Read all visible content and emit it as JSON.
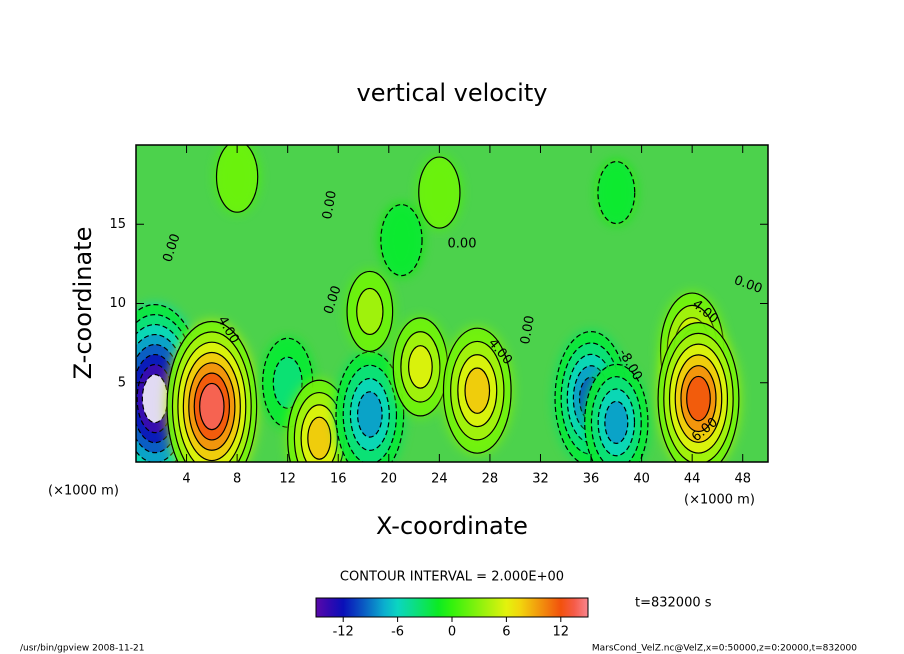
{
  "chart_data": {
    "type": "contour",
    "title": "vertical velocity",
    "x_label": "X-coordinate",
    "y_label": "Z-coordinate",
    "axis_unit": "(×1000 m)",
    "xlim": [
      0,
      50
    ],
    "ylim": [
      0,
      20
    ],
    "xticks": [
      4,
      8,
      12,
      16,
      20,
      24,
      28,
      32,
      36,
      40,
      44,
      48
    ],
    "yticks": [
      5,
      10,
      15
    ],
    "features": [
      {
        "x": 1.5,
        "z": 4,
        "value": -16
      },
      {
        "x": 6,
        "z": 3.5,
        "value": 14
      },
      {
        "x": 12,
        "z": 5,
        "value": -5
      },
      {
        "x": 14.5,
        "z": 1.5,
        "value": 8
      },
      {
        "x": 18.5,
        "z": 3,
        "value": -9
      },
      {
        "x": 18.5,
        "z": 9.5,
        "value": 4
      },
      {
        "x": 22.5,
        "z": 6,
        "value": 6
      },
      {
        "x": 27,
        "z": 4.5,
        "value": 9
      },
      {
        "x": 36,
        "z": 4,
        "value": -10
      },
      {
        "x": 38,
        "z": 2.5,
        "value": -8
      },
      {
        "x": 44,
        "z": 7,
        "value": 8
      },
      {
        "x": 44.5,
        "z": 4,
        "value": 12
      },
      {
        "x": 24,
        "z": 17,
        "value": 3
      },
      {
        "x": 8,
        "z": 18,
        "value": 3
      },
      {
        "x": 38,
        "z": 17,
        "value": -2
      },
      {
        "x": 21,
        "z": 14,
        "value": -3
      }
    ],
    "contour_labels": [
      "0.00",
      "0.00",
      "0.00",
      "0.00",
      "0.00",
      "4.00",
      "4.00",
      "-8.00",
      "4.00",
      "6.00",
      "0.00"
    ],
    "contour_interval": "CONTOUR INTERVAL = 2.000E+00",
    "clim": [
      -15,
      15
    ],
    "colorbar_ticks": [
      -12,
      -6,
      0,
      6,
      12
    ],
    "time_label": "t=832000 s",
    "footer_left": "/usr/bin/gpview   2008-11-21",
    "footer_right": "MarsCond_VelZ.nc@VelZ,x=0:50000,z=0:20000,t=832000"
  }
}
